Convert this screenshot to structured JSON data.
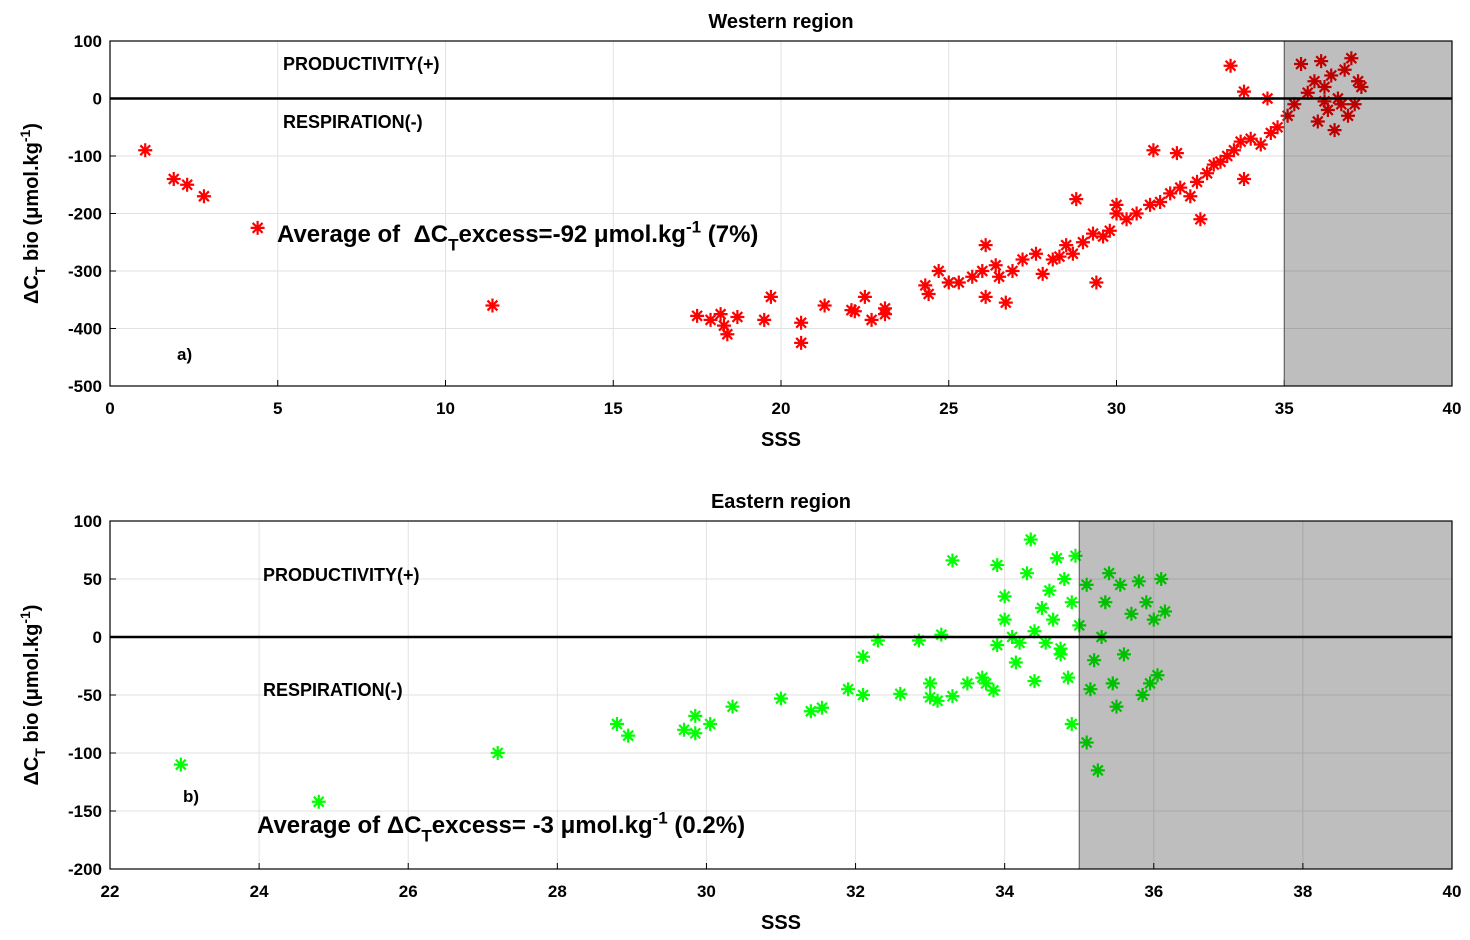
{
  "chart_data": [
    {
      "type": "scatter",
      "title": "Western region",
      "xlabel": "SSS",
      "ylabel": [
        "ΔC",
        "T",
        " bio (μmol.kg",
        "-1",
        ")"
      ],
      "annotations": [
        "PRODUCTIVITY(+)",
        "RESPIRATION(-)",
        "a)"
      ],
      "average": [
        "Average of  ΔC",
        "T",
        "excess=-92 μmol.kg",
        "-1",
        " (7%)"
      ],
      "xlim": [
        0,
        40
      ],
      "ylim": [
        -500,
        100
      ],
      "xticks": [
        0,
        5,
        10,
        15,
        20,
        25,
        30,
        35,
        40
      ],
      "yticks": [
        -500,
        -400,
        -300,
        -200,
        -100,
        0,
        100
      ],
      "grid": true,
      "hline": 0,
      "shade": [
        35,
        40
      ],
      "series": [
        {
          "color": "#ff0000",
          "x": [
            1.05,
            1.9,
            2.3,
            2.8,
            4.4,
            11.4,
            17.5,
            17.9,
            18.2,
            18.3,
            18.4,
            18.7,
            19.5,
            19.7,
            20.6,
            20.6,
            21.3,
            22.1,
            22.2,
            22.5,
            22.7,
            23.1,
            23.1,
            24.3,
            24.4,
            24.7,
            25,
            25.3,
            25.7,
            26,
            26.1,
            26.1,
            26.4,
            26.5,
            26.7,
            26.9,
            27.2,
            27.6,
            27.8,
            28.1,
            28.3,
            28.5,
            28.7,
            28.8,
            29,
            29.3,
            29.4,
            29.6,
            29.8,
            30,
            30,
            30.3,
            30.6,
            31,
            31.1,
            31.3,
            31.6,
            31.8,
            31.9,
            32.2,
            32.4,
            32.5,
            32.7,
            32.9,
            33.1,
            33.3,
            33.5,
            33.7,
            33.8,
            34,
            34.3,
            34.6,
            33.4,
            33.8,
            34.5,
            34.8,
            35.1,
            35.3,
            35.5,
            35.7,
            35.9,
            36,
            36.1,
            36.2,
            36.3,
            36.4,
            36.5,
            36.6,
            36.8,
            36.9,
            37,
            37.1,
            37.2,
            37.3,
            36.7,
            36.2
          ],
          "values": [
            -90,
            -140,
            -150,
            -170,
            -225,
            -360,
            -378,
            -385,
            -375,
            -395,
            -410,
            -380,
            -385,
            -345,
            -390,
            -425,
            -360,
            -368,
            -370,
            -345,
            -385,
            -365,
            -375,
            -325,
            -340,
            -300,
            -320,
            -320,
            -310,
            -300,
            -255,
            -345,
            -290,
            -310,
            -355,
            -300,
            -280,
            -270,
            -305,
            -280,
            -275,
            -255,
            -270,
            -175,
            -250,
            -235,
            -320,
            -240,
            -230,
            -200,
            -185,
            -210,
            -200,
            -185,
            -90,
            -180,
            -165,
            -95,
            -155,
            -170,
            -145,
            -210,
            -130,
            -115,
            -110,
            -100,
            -90,
            -75,
            -140,
            -70,
            -80,
            -60,
            57,
            12,
            0,
            -50,
            -30,
            -10,
            60,
            10,
            30,
            -40,
            65,
            20,
            -20,
            40,
            -55,
            0,
            50,
            -30,
            70,
            -10,
            30,
            20,
            -10,
            -5
          ]
        }
      ]
    },
    {
      "type": "scatter",
      "title": "Eastern region",
      "xlabel": "SSS",
      "ylabel": [
        "ΔC",
        "T",
        " bio (μmol.kg",
        "-1",
        ")"
      ],
      "annotations": [
        "PRODUCTIVITY(+)",
        "RESPIRATION(-)",
        "b)"
      ],
      "average": [
        "Average of ΔC",
        "T",
        "excess= -3 μmol.kg",
        "-1",
        " (0.2%)"
      ],
      "xlim": [
        22,
        40
      ],
      "ylim": [
        -200,
        100
      ],
      "xticks": [
        22,
        24,
        26,
        28,
        30,
        32,
        34,
        36,
        38,
        40
      ],
      "yticks": [
        -200,
        -150,
        -100,
        -50,
        0,
        50,
        100
      ],
      "grid": true,
      "hline": 0,
      "shade": [
        35,
        40
      ],
      "series": [
        {
          "color": "#00ff00",
          "x": [
            22.95,
            24.8,
            27.2,
            28.8,
            28.95,
            29.7,
            29.85,
            29.85,
            30.05,
            30.35,
            31.0,
            31.4,
            31.55,
            31.9,
            32.1,
            32.1,
            32.3,
            32.6,
            32.85,
            33.0,
            33.0,
            33.1,
            33.15,
            33.3,
            33.3,
            33.5,
            33.7,
            33.75,
            33.85,
            33.9,
            33.9,
            34.0,
            34.0,
            34.1,
            34.15,
            34.2,
            34.3,
            34.35,
            34.4,
            34.4,
            34.5,
            34.55,
            34.6,
            34.65,
            34.7,
            34.75,
            34.8,
            34.85,
            34.9,
            34.9,
            34.95,
            35.0,
            35.1,
            35.1,
            35.2,
            35.25,
            35.3,
            35.35,
            35.4,
            35.45,
            35.5,
            35.6,
            35.7,
            35.8,
            35.85,
            35.9,
            35.95,
            36.0,
            36.1,
            36.15,
            36.05,
            35.55,
            34.75,
            35.15
          ],
          "values": [
            -110,
            -142,
            -100,
            -75,
            -85,
            -80,
            -68,
            -83,
            -75,
            -60,
            -53,
            -64,
            -61,
            -45,
            -50,
            -17,
            -3,
            -49,
            -3,
            -40,
            -52,
            -55,
            2,
            66,
            -51,
            -40,
            -35,
            -40,
            -46,
            62,
            -7,
            35,
            15,
            0,
            -22,
            -5,
            55,
            84,
            5,
            -38,
            25,
            -5,
            40,
            15,
            68,
            -10,
            50,
            -35,
            30,
            -75,
            70,
            10,
            -91,
            45,
            -20,
            -115,
            0,
            30,
            55,
            -40,
            -60,
            -15,
            20,
            48,
            -50,
            30,
            -40,
            15,
            50,
            22,
            -33,
            45,
            -15,
            -45
          ]
        }
      ]
    }
  ]
}
